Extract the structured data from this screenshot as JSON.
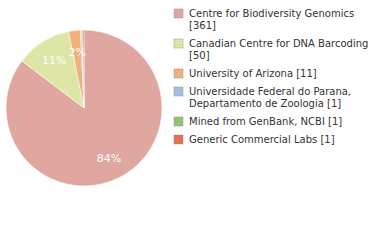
{
  "chart_data": {
    "type": "pie",
    "categories": [
      "Centre for Biodiversity Genomics [361]",
      "Canadian Centre for DNA Barcoding [50]",
      "University of Arizona [11]",
      "Universidade Federal do Parana, Departamento de Zoologia [1]",
      "Mined from GenBank, NCBI [1]",
      "Generic Commercial Labs [1]"
    ],
    "values": [
      84.4,
      11.4,
      2.4,
      0.24,
      0.24,
      0.24
    ],
    "value_labels": [
      "84%",
      "11%",
      "2%",
      null,
      null,
      null
    ],
    "colors": [
      "#e0a6a0",
      "#dde6a6",
      "#f0b27a",
      "#a6bedd",
      "#95c26f",
      "#e0704f"
    ],
    "data_labels": true,
    "legend": "right"
  }
}
